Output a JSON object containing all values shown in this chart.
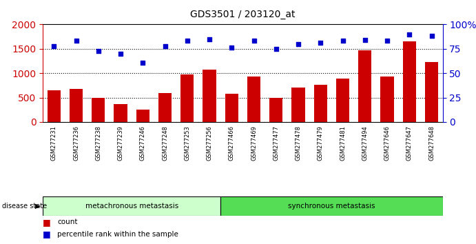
{
  "title": "GDS3501 / 203120_at",
  "samples": [
    "GSM277231",
    "GSM277236",
    "GSM277238",
    "GSM277239",
    "GSM277246",
    "GSM277248",
    "GSM277253",
    "GSM277256",
    "GSM277466",
    "GSM277469",
    "GSM277477",
    "GSM277478",
    "GSM277479",
    "GSM277481",
    "GSM277494",
    "GSM277646",
    "GSM277647",
    "GSM277648"
  ],
  "counts": [
    650,
    680,
    500,
    370,
    255,
    590,
    970,
    1080,
    575,
    930,
    500,
    700,
    760,
    890,
    1470,
    930,
    1650,
    1230
  ],
  "percentiles": [
    78,
    83,
    73,
    70,
    61,
    78,
    83,
    85,
    76,
    83,
    75,
    80,
    81,
    83,
    84,
    83,
    90,
    88
  ],
  "group1_label": "metachronous metastasis",
  "group1_count": 8,
  "group2_label": "synchronous metastasis",
  "group2_count": 10,
  "bar_color": "#cc0000",
  "dot_color": "#0000cc",
  "group1_bg": "#ccffcc",
  "group2_bg": "#55dd55",
  "disease_state_label": "disease state",
  "legend_count": "count",
  "legend_percentile": "percentile rank within the sample",
  "ylim_left": [
    0,
    2000
  ],
  "ylim_right": [
    0,
    100
  ],
  "yticks_left": [
    0,
    500,
    1000,
    1500,
    2000
  ],
  "yticks_right": [
    0,
    25,
    50,
    75,
    100
  ],
  "grid_values": [
    500,
    1000,
    1500
  ],
  "background_color": "#ffffff",
  "tick_area_color": "#c8c8c8"
}
